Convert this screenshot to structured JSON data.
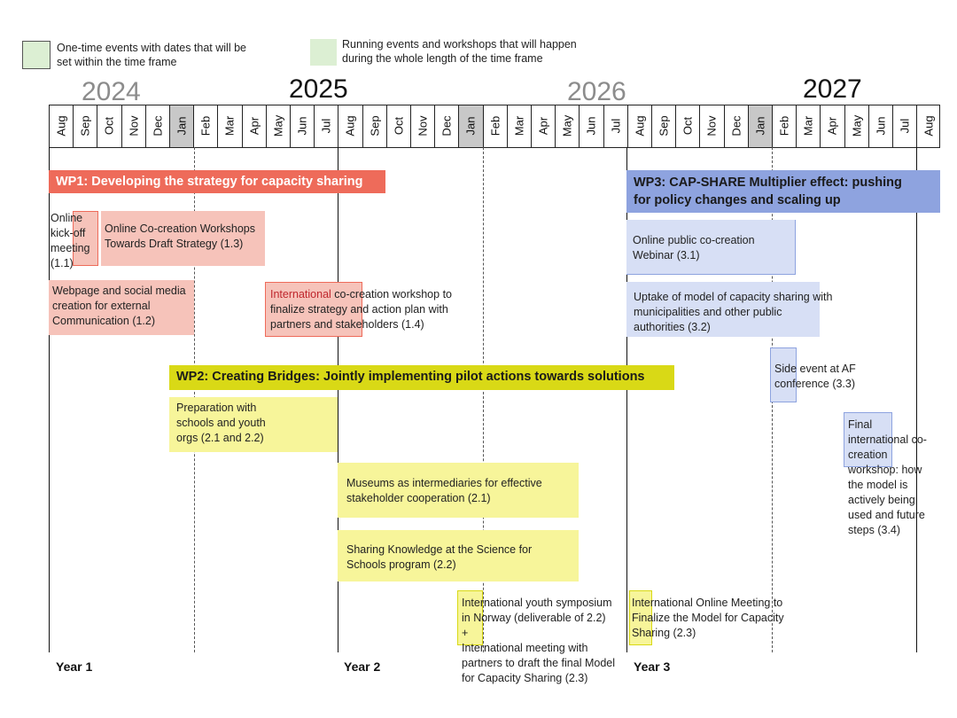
{
  "legend": {
    "one_time_line1": "One-time events with dates that will be",
    "one_time_line2": "set within the time frame",
    "running_line1": "Running events and workshops that will happen",
    "running_line2": "during the whole length of the time frame"
  },
  "years": [
    "2024",
    "2025",
    "2026",
    "2027"
  ],
  "months": [
    "Aug",
    "Sep",
    "Oct",
    "Nov",
    "Dec",
    "Jan",
    "Feb",
    "Mar",
    "Apr",
    "May",
    "Jun",
    "Jul",
    "Aug",
    "Sep",
    "Oct",
    "Nov",
    "Dec",
    "Jan",
    "Feb",
    "Mar",
    "Apr",
    "May",
    "Jun",
    "Jul",
    "Aug",
    "Sep",
    "Oct",
    "Nov",
    "Dec",
    "Jan",
    "Feb",
    "Mar",
    "Apr",
    "May",
    "Jun",
    "Jul",
    "Aug"
  ],
  "wp1": {
    "title": "WP1: Developing the strategy for capacity sharing",
    "a11": [
      "Online",
      "kick-off",
      "meeting",
      "(1.1)"
    ],
    "a13": [
      "Online Co-creation Workshops",
      "Towards Draft Strategy (1.3)"
    ],
    "a12": [
      "Webpage and social media",
      "creation for external",
      "Communication (1.2)"
    ],
    "a14_red": "International",
    "a14_line1_rest": " co-creation workshop to",
    "a14_line2": "finalize strategy and action plan with",
    "a14_line3": "partners and stakeholders (1.4)"
  },
  "wp2": {
    "title": "WP2: Creating Bridges: Jointly implementing pilot actions towards solutions",
    "a21": [
      "Preparation with",
      "schools and youth",
      "orgs (2.1 and 2.2)"
    ],
    "museums": [
      "Museums as intermediaries for effective",
      "stakeholder cooperation (2.1)"
    ],
    "sharing": [
      "Sharing Knowledge at the Science for",
      "Schools program (2.2)"
    ],
    "symposium": [
      "International youth symposium",
      "in Norway (deliverable of 2.2)",
      "+",
      "International meeting with",
      "partners to draft the final Model",
      "for Capacity Sharing (2.3)"
    ],
    "online_meeting": [
      "International Online Meeting to",
      "Finalize the Model for Capacity",
      "Sharing (2.3)"
    ]
  },
  "wp3": {
    "title_line1": "WP3: CAP-SHARE Multiplier effect: pushing",
    "title_line2": "for policy changes and scaling up",
    "a31": [
      "Online public co-creation",
      "Webinar (3.1)"
    ],
    "a32": [
      "Uptake of model of capacity sharing with",
      "municipalities and other public",
      "authorities (3.2)"
    ],
    "a33": [
      "Side event at AF",
      "conference (3.3)"
    ],
    "a34": [
      "Final",
      "international co-",
      "creation",
      "workshop: how",
      "the model is",
      "actively being",
      "used and future",
      "steps (3.4)"
    ]
  },
  "year_labels": [
    "Year 1",
    "Year 2",
    "Year 3"
  ],
  "colors": {
    "wp1_bar": "#ee6b5a",
    "wp1_box": "#f6c3ba",
    "wp2_bar": "#d9d916",
    "wp2_box": "#f7f59a",
    "wp3_bar": "#8ea3df",
    "wp3_box": "#d7dff5",
    "legend_swatch": "#dcefd3",
    "jan_shade": "#c8c8c8"
  }
}
